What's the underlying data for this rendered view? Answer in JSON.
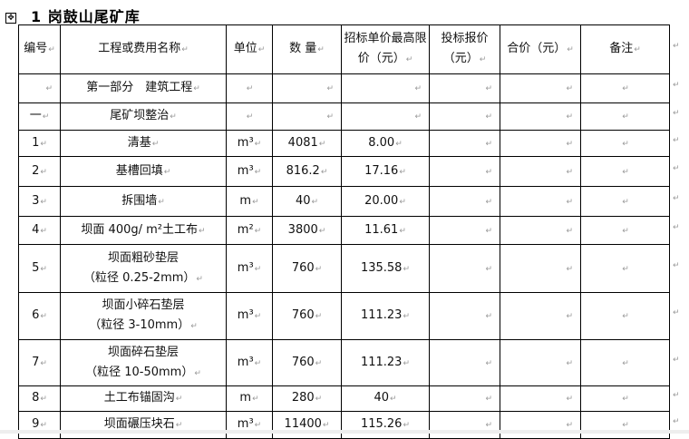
{
  "title": "1 岗鼓山尾矿库",
  "headers": [
    "编号",
    "工程或费用名称",
    "单位",
    "数 量",
    "招标单价最高限价（元）",
    "投标报价（元）",
    "合价（元）",
    "备注"
  ],
  "rows": [
    {
      "no": "",
      "name": "第一部分　建筑工程",
      "name2": "",
      "unit": "",
      "qty": "",
      "price": ""
    },
    {
      "no": "一",
      "name": "尾矿坝整治",
      "name2": "",
      "unit": "",
      "qty": "",
      "price": ""
    },
    {
      "no": "1",
      "name": "清基",
      "name2": "",
      "unit": "m³",
      "qty": "4081",
      "price": "8.00"
    },
    {
      "no": "2",
      "name": "基槽回填",
      "name2": "",
      "unit": "m³",
      "qty": "816.2",
      "price": "17.16"
    },
    {
      "no": "3",
      "name": "拆围墙",
      "name2": "",
      "unit": "m",
      "qty": "40",
      "price": "20.00"
    },
    {
      "no": "4",
      "name": "坝面 400g/ m²土工布",
      "name2": "",
      "unit": "m²",
      "qty": "3800",
      "price": "11.61"
    },
    {
      "no": "5",
      "name": "坝面粗砂垫层",
      "name2": "（粒径 0.25-2mm）",
      "unit": "m³",
      "qty": "760",
      "price": "135.58"
    },
    {
      "no": "6",
      "name": "坝面小碎石垫层",
      "name2": "（粒径 3-10mm）",
      "unit": "m³",
      "qty": "760",
      "price": "111.23"
    },
    {
      "no": "7",
      "name": "坝面碎石垫层",
      "name2": "（粒径 10-50mm）",
      "unit": "m³",
      "qty": "760",
      "price": "111.23"
    },
    {
      "no": "8",
      "name": "土工布锚固沟",
      "name2": "",
      "unit": "m",
      "qty": "280",
      "price": "40"
    },
    {
      "no": "9",
      "name": "坝面碾压块石",
      "name2": "",
      "unit": "m³",
      "qty": "11400",
      "price": "115.26"
    }
  ]
}
